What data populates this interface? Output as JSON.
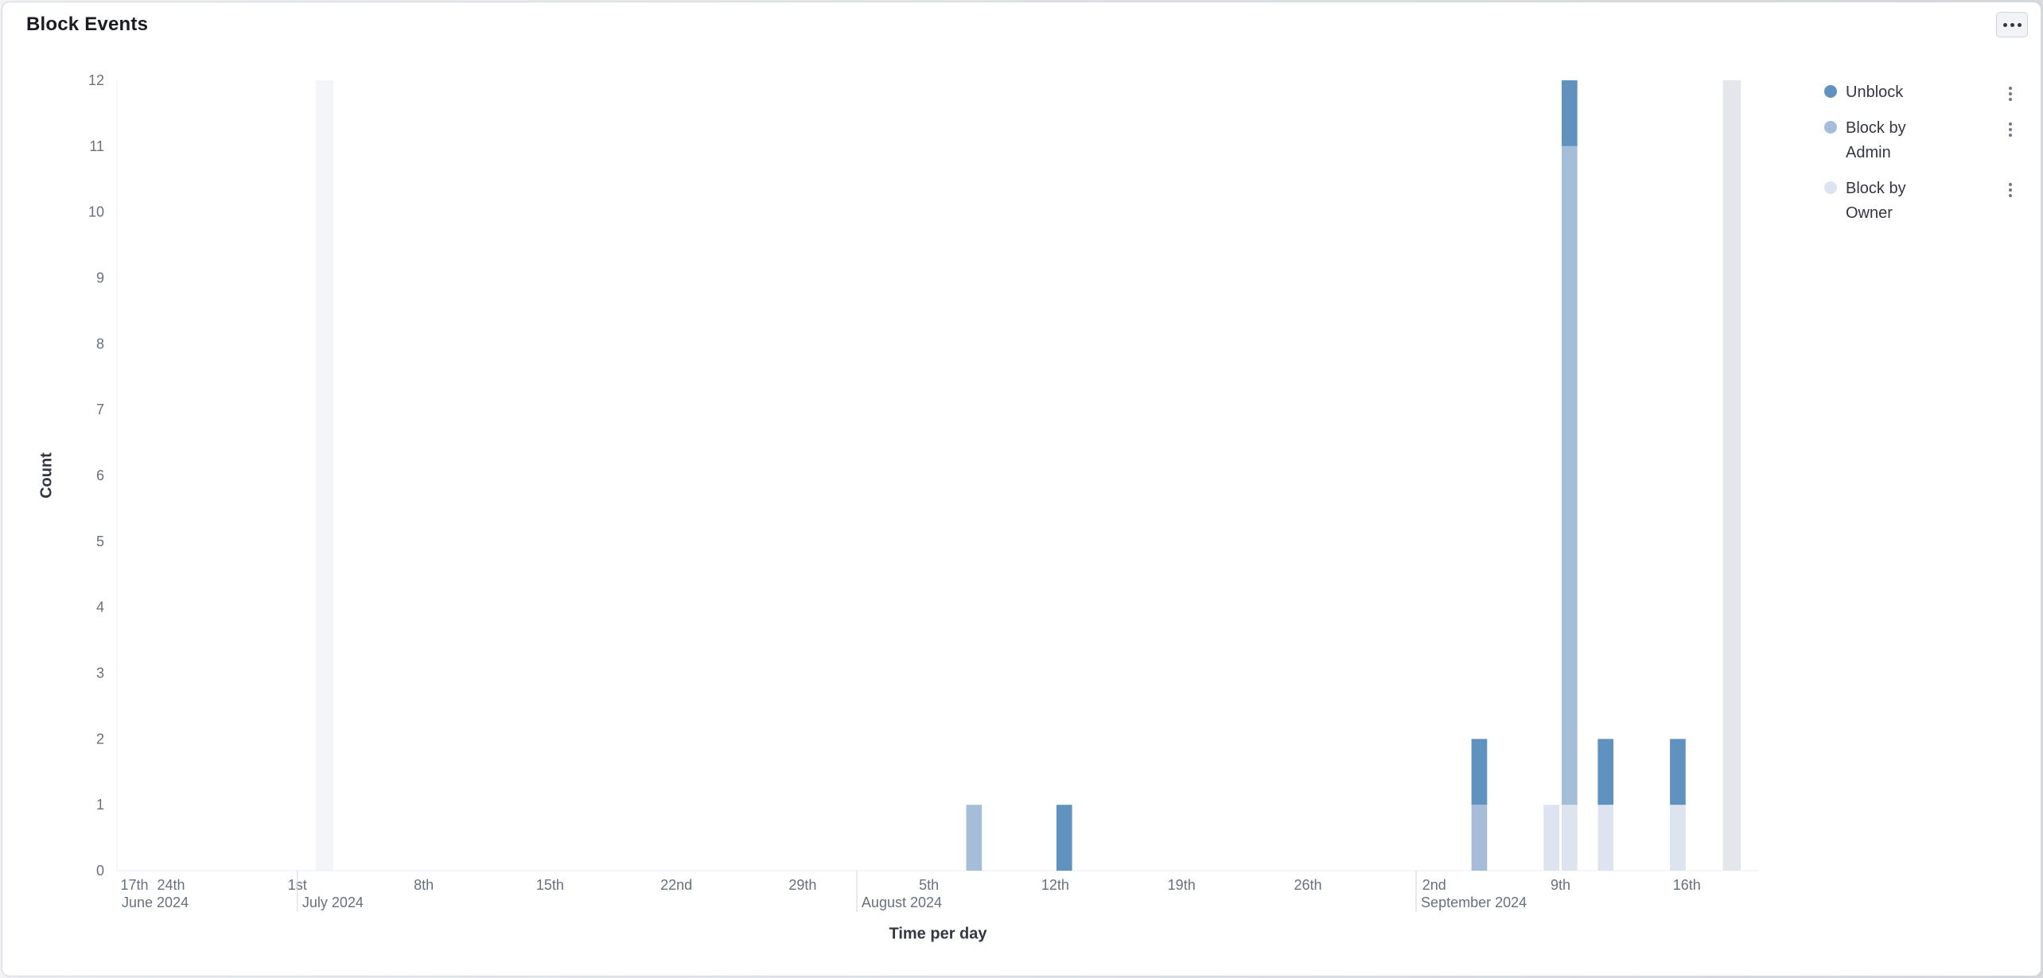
{
  "card": {
    "title": "Block Events",
    "panel_menu_icon": "ellipsis-horizontal-icon"
  },
  "legend": {
    "position": "right",
    "action_icon": "ellipsis-vertical-icon"
  },
  "chart_data": {
    "type": "bar",
    "stacked": true,
    "title": "Block Events",
    "xlabel": "Time per day",
    "ylabel": "Count",
    "ylim": [
      0,
      12
    ],
    "y_ticks": [
      0,
      1,
      2,
      3,
      4,
      5,
      6,
      7,
      8,
      9,
      10,
      11,
      12
    ],
    "grid": false,
    "legend_position": "right",
    "x_axis": {
      "start": "2024-06-21",
      "end": "2024-09-20",
      "ticks": [
        {
          "date": "2024-06-17",
          "label": "17th"
        },
        {
          "date": "2024-06-24",
          "label": "24th"
        },
        {
          "date": "2024-07-01",
          "label": "1st"
        },
        {
          "date": "2024-07-08",
          "label": "8th"
        },
        {
          "date": "2024-07-15",
          "label": "15th"
        },
        {
          "date": "2024-07-22",
          "label": "22nd"
        },
        {
          "date": "2024-07-29",
          "label": "29th"
        },
        {
          "date": "2024-08-05",
          "label": "5th"
        },
        {
          "date": "2024-08-12",
          "label": "12th"
        },
        {
          "date": "2024-08-19",
          "label": "19th"
        },
        {
          "date": "2024-08-26",
          "label": "26th"
        },
        {
          "date": "2024-09-02",
          "label": "2nd"
        },
        {
          "date": "2024-09-09",
          "label": "9th"
        },
        {
          "date": "2024-09-16",
          "label": "16th"
        }
      ],
      "months": [
        {
          "date": "2024-06-01",
          "label": "June 2024"
        },
        {
          "date": "2024-07-01",
          "label": "July 2024"
        },
        {
          "date": "2024-08-01",
          "label": "August 2024"
        },
        {
          "date": "2024-09-01",
          "label": "September 2024"
        }
      ]
    },
    "series": [
      {
        "key": "unblock",
        "name": "Unblock",
        "color": "#6092c0"
      },
      {
        "key": "admin",
        "name": "Block by Admin",
        "color": "#a6bdd9"
      },
      {
        "key": "owner",
        "name": "Block by Owner",
        "color": "#dde3ef"
      }
    ],
    "stack_order": [
      "owner",
      "admin",
      "unblock"
    ],
    "bars": [
      {
        "date": "2024-08-07",
        "values": {
          "owner": 0,
          "admin": 1,
          "unblock": 0
        }
      },
      {
        "date": "2024-08-12",
        "values": {
          "owner": 0,
          "admin": 0,
          "unblock": 1
        }
      },
      {
        "date": "2024-09-04",
        "values": {
          "owner": 0,
          "admin": 1,
          "unblock": 1
        }
      },
      {
        "date": "2024-09-08",
        "values": {
          "owner": 1,
          "admin": 0,
          "unblock": 0
        }
      },
      {
        "date": "2024-09-09",
        "values": {
          "owner": 1,
          "admin": 10,
          "unblock": 1
        }
      },
      {
        "date": "2024-09-11",
        "values": {
          "owner": 1,
          "admin": 0,
          "unblock": 1
        }
      },
      {
        "date": "2024-09-15",
        "values": {
          "owner": 1,
          "admin": 0,
          "unblock": 1
        }
      }
    ],
    "highlight_bands": [
      {
        "start_date": "2024-07-02",
        "days": 1,
        "color": "#f3f5f9"
      },
      {
        "start_date": "2024-09-18",
        "days": 1,
        "color": "#e4e6eb"
      }
    ]
  }
}
